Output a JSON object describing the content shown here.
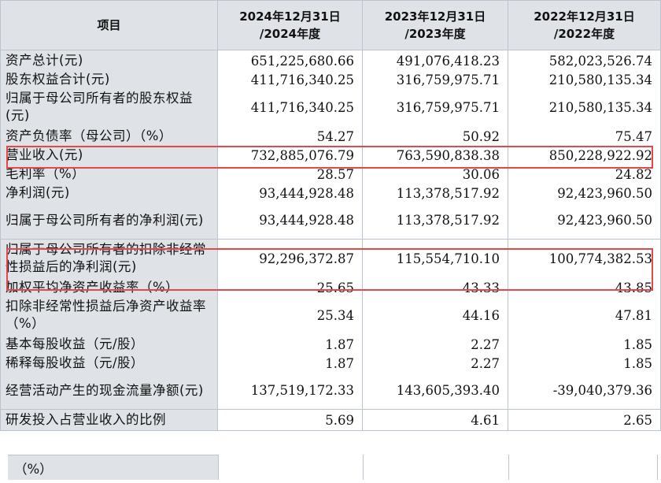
{
  "header": {
    "item": "项目",
    "col1_line1": "2024年12月31日",
    "col1_line2": "/2024年度",
    "col2_line1": "2023年12月31日",
    "col2_line2": "/2023年度",
    "col3_line1": "2022年12月31日",
    "col3_line2": "/2022年度"
  },
  "rows": [
    {
      "label": "资产总计(元)",
      "v2024": "651,225,680.66",
      "v2023": "491,076,418.23",
      "v2022": "582,023,526.74"
    },
    {
      "label": "股东权益合计(元)",
      "v2024": "411,716,340.25",
      "v2023": "316,759,975.71",
      "v2022": "210,580,135.34"
    },
    {
      "label": "归属于母公司所有者的股东权益(元)",
      "v2024": "411,716,340.25",
      "v2023": "316,759,975.71",
      "v2022": "210,580,135.34"
    },
    {
      "label": "资产负债率（母公司）（%）",
      "v2024": "54.27",
      "v2023": "50.92",
      "v2022": "75.47"
    },
    {
      "label": "营业收入(元)",
      "v2024": "732,885,076.79",
      "v2023": "763,590,838.38",
      "v2022": "850,228,922.92"
    },
    {
      "label": "毛利率（%）",
      "v2024": "28.57",
      "v2023": "30.06",
      "v2022": "24.82"
    },
    {
      "label": "净利润(元)",
      "v2024": "93,444,928.48",
      "v2023": "113,378,517.92",
      "v2022": "92,423,960.50"
    },
    {
      "label": "归属于母公司所有者的净利润(元)",
      "v2024": "93,444,928.48",
      "v2023": "113,378,517.92",
      "v2022": "92,423,960.50"
    },
    {
      "label": "归属于母公司所有者的扣除非经常性损益后的净利润(元)",
      "v2024": "92,296,372.87",
      "v2023": "115,554,710.10",
      "v2022": "100,774,382.53"
    },
    {
      "label": "加权平均净资产收益率（%）",
      "v2024": "25.65",
      "v2023": "43.33",
      "v2022": "43.85"
    },
    {
      "label": "扣除非经常性损益后净资产收益率（%）",
      "v2024": "25.34",
      "v2023": "44.16",
      "v2022": "47.81"
    },
    {
      "label": "基本每股收益（元/股）",
      "v2024": "1.87",
      "v2023": "2.27",
      "v2022": "1.85"
    },
    {
      "label": "稀释每股收益（元/股）",
      "v2024": "1.87",
      "v2023": "2.27",
      "v2022": "1.85"
    },
    {
      "label": "经营活动产生的现金流量净额(元)",
      "v2024": "137,519,172.33",
      "v2023": "143,605,393.40",
      "v2022": "-39,040,379.36"
    },
    {
      "label": "研发投入占营业收入的比例",
      "v2024": "5.69",
      "v2023": "4.61",
      "v2022": "2.65"
    }
  ],
  "continuation_label": "（%）",
  "highlight_color": "#e04a4a"
}
